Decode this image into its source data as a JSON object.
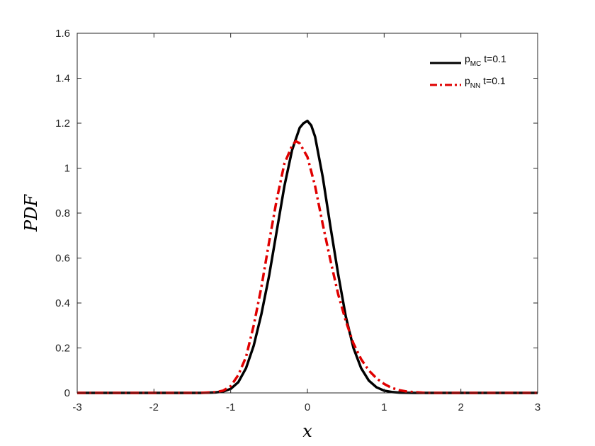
{
  "chart_data": {
    "type": "line",
    "xlabel": "x",
    "ylabel": "PDF",
    "xlim": [
      -3,
      3
    ],
    "ylim": [
      0,
      1.6
    ],
    "xticks": [
      "-3",
      "-2",
      "-1",
      "0",
      "1",
      "2",
      "3"
    ],
    "yticks": [
      "0",
      "0.2",
      "0.4",
      "0.6",
      "0.8",
      "1",
      "1.2",
      "1.4",
      "1.6"
    ],
    "grid": false,
    "legend_position": "top-right",
    "series": [
      {
        "name": "p_MC t=0.1",
        "legend_main": "p",
        "legend_sub": "MC",
        "legend_suffix": " t=0.1",
        "color": "#000000",
        "style": "solid",
        "x": [
          -3,
          -1.4,
          -1.2,
          -1.1,
          -1.0,
          -0.9,
          -0.8,
          -0.7,
          -0.6,
          -0.5,
          -0.4,
          -0.3,
          -0.2,
          -0.1,
          -0.05,
          0,
          0.05,
          0.1,
          0.2,
          0.3,
          0.4,
          0.5,
          0.6,
          0.7,
          0.8,
          0.9,
          1.0,
          1.1,
          1.2,
          1.4,
          3
        ],
        "y": [
          0,
          0,
          0.002,
          0.006,
          0.018,
          0.048,
          0.11,
          0.21,
          0.35,
          0.52,
          0.72,
          0.92,
          1.08,
          1.18,
          1.2,
          1.21,
          1.19,
          1.14,
          0.96,
          0.74,
          0.53,
          0.34,
          0.2,
          0.11,
          0.055,
          0.025,
          0.01,
          0.004,
          0.001,
          0,
          0
        ]
      },
      {
        "name": "p_NN t=0.1",
        "legend_main": "p",
        "legend_sub": "NN",
        "legend_suffix": " t=0.1",
        "color": "#e00000",
        "style": "dashdot",
        "x": [
          -3,
          -1.4,
          -1.2,
          -1.1,
          -1.0,
          -0.9,
          -0.8,
          -0.7,
          -0.6,
          -0.5,
          -0.4,
          -0.3,
          -0.2,
          -0.15,
          -0.1,
          0,
          0.1,
          0.2,
          0.3,
          0.4,
          0.5,
          0.6,
          0.7,
          0.8,
          0.9,
          1.0,
          1.1,
          1.2,
          1.3,
          1.4,
          1.5,
          1.6,
          3
        ],
        "y": [
          0,
          0,
          0.003,
          0.01,
          0.03,
          0.08,
          0.16,
          0.3,
          0.47,
          0.67,
          0.86,
          1.02,
          1.1,
          1.12,
          1.11,
          1.05,
          0.92,
          0.75,
          0.59,
          0.44,
          0.32,
          0.22,
          0.15,
          0.1,
          0.065,
          0.04,
          0.022,
          0.012,
          0.006,
          0.003,
          0.001,
          0,
          0
        ]
      }
    ]
  }
}
